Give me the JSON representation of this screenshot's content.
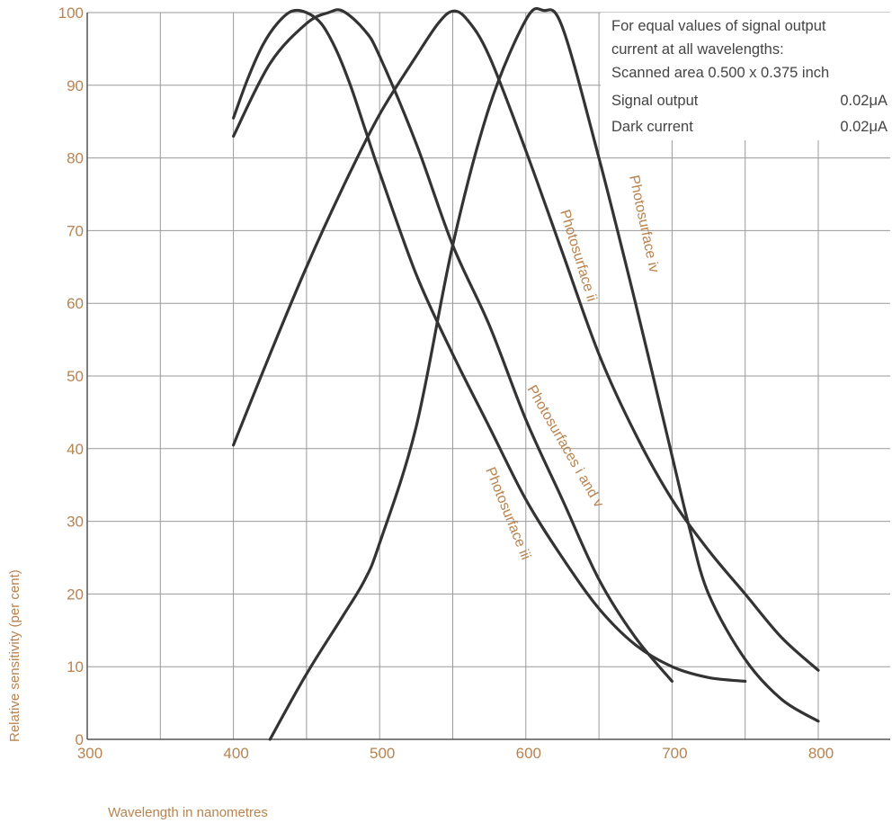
{
  "chart_data": {
    "type": "line",
    "title": "",
    "xlabel": "Wavelength in nanometres",
    "ylabel": "Relative sensitivity (per cent)",
    "xlim": [
      300,
      850
    ],
    "ylim": [
      0,
      100
    ],
    "x_ticks": [
      300,
      400,
      500,
      600,
      700,
      800
    ],
    "y_ticks": [
      0,
      10,
      20,
      30,
      40,
      50,
      60,
      70,
      80,
      90,
      100
    ],
    "grid": true,
    "legend": "none",
    "series": [
      {
        "name": "Photosurfaces i and v",
        "color": "#333333",
        "points": [
          [
            400,
            85.5
          ],
          [
            410,
            91
          ],
          [
            420,
            95.5
          ],
          [
            430,
            98.5
          ],
          [
            440,
            100.2
          ],
          [
            450,
            100
          ],
          [
            460,
            98.5
          ],
          [
            470,
            95
          ],
          [
            480,
            90
          ],
          [
            490,
            84
          ],
          [
            500,
            78
          ],
          [
            525,
            64
          ],
          [
            550,
            53
          ],
          [
            575,
            43
          ],
          [
            600,
            33
          ],
          [
            625,
            25
          ],
          [
            650,
            18
          ],
          [
            675,
            13
          ],
          [
            700,
            10
          ],
          [
            725,
            8.5
          ],
          [
            750,
            8
          ]
        ]
      },
      {
        "name": "Photosurface ii",
        "color": "#333333",
        "points": [
          [
            400,
            40.5
          ],
          [
            425,
            53
          ],
          [
            450,
            65
          ],
          [
            475,
            76
          ],
          [
            500,
            86
          ],
          [
            525,
            94
          ],
          [
            540,
            98.5
          ],
          [
            550,
            100.2
          ],
          [
            560,
            99
          ],
          [
            575,
            94
          ],
          [
            600,
            81
          ],
          [
            625,
            67
          ],
          [
            650,
            53
          ],
          [
            675,
            42
          ],
          [
            700,
            33
          ],
          [
            725,
            26
          ],
          [
            750,
            20
          ],
          [
            775,
            14
          ],
          [
            800,
            9.5
          ]
        ]
      },
      {
        "name": "Photosurface iii",
        "color": "#333333",
        "points": [
          [
            400,
            83
          ],
          [
            425,
            93
          ],
          [
            450,
            98.5
          ],
          [
            465,
            100
          ],
          [
            475,
            100.2
          ],
          [
            490,
            97.5
          ],
          [
            500,
            94
          ],
          [
            525,
            82
          ],
          [
            550,
            68
          ],
          [
            575,
            57
          ],
          [
            600,
            44
          ],
          [
            625,
            33
          ],
          [
            650,
            22
          ],
          [
            675,
            14
          ],
          [
            700,
            8
          ]
        ]
      },
      {
        "name": "Photosurface iv",
        "color": "#333333",
        "points": [
          [
            425,
            0
          ],
          [
            450,
            9
          ],
          [
            475,
            17
          ],
          [
            490,
            22
          ],
          [
            500,
            27
          ],
          [
            525,
            43
          ],
          [
            550,
            68
          ],
          [
            575,
            87
          ],
          [
            600,
            99
          ],
          [
            612,
            100.3
          ],
          [
            625,
            98
          ],
          [
            650,
            80
          ],
          [
            675,
            60
          ],
          [
            700,
            39
          ],
          [
            712,
            29
          ],
          [
            725,
            20
          ],
          [
            750,
            11
          ],
          [
            775,
            5.5
          ],
          [
            800,
            2.5
          ]
        ]
      }
    ],
    "curve_labels": [
      "Photosurface iv",
      "Photosurface ii",
      "Photosurfaces i and v",
      "Photosurface iii"
    ],
    "annotation": {
      "heading_line1": "For equal values of signal output",
      "heading_line2": "current at all wavelengths:",
      "rows": [
        {
          "label": "Scanned area 0.500 x 0.375 inch",
          "value": ""
        },
        {
          "label": "Signal output",
          "value": "0.02μA"
        },
        {
          "label": "Dark current",
          "value": "0.02μA"
        }
      ]
    }
  }
}
